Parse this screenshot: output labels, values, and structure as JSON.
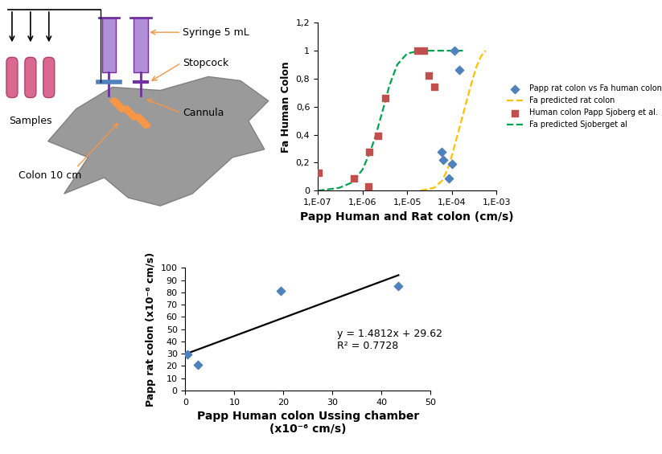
{
  "diagram": {
    "labels": {
      "samples": "Samples",
      "syringe": "Syringe 5 mL",
      "stopcock": "Stopcock",
      "cannula": "Cannula",
      "colon": "Colon 10 cm"
    }
  },
  "chart_data": [
    {
      "type": "scatter",
      "xlabel": "Papp Human and Rat colon (cm/s)",
      "ylabel": "Fa Human Colon",
      "log": "x",
      "grid": false,
      "legend": "center left",
      "xlim": [
        1e-07,
        0.001
      ],
      "xticks": [
        {
          "value": 1e-07,
          "label": "1,E-07"
        },
        {
          "value": 1e-06,
          "label": "1,E-06"
        },
        {
          "value": 1e-05,
          "label": "1,E-05"
        },
        {
          "value": 0.0001,
          "label": "1,E-04"
        },
        {
          "value": 0.001,
          "label": "1,E-03"
        }
      ],
      "ylim": [
        0,
        1.2
      ],
      "yticks": [
        0,
        {
          "value": 0.2,
          "label": "0,2"
        },
        {
          "value": 0.4,
          "label": "0,4"
        },
        {
          "value": 0.6,
          "label": "0,6"
        },
        {
          "value": 0.8,
          "label": "0,8"
        },
        1,
        {
          "value": 1.2,
          "label": "1,2"
        }
      ],
      "series": [
        {
          "name": "Papp rat colon vs Fa human colon",
          "type": "scatter",
          "marker": "diamond",
          "color": "#4f81bd",
          "x": [
            5.9e-05,
            6.4e-05,
            8.5e-05,
            0.0001,
            0.000114,
            0.000148
          ],
          "values": [
            0.28,
            0.22,
            0.09,
            0.19,
            1.0,
            0.86
          ]
        },
        {
          "name": "Fa predicted rat colon",
          "type": "line",
          "line_style": "dashed",
          "color": "#ffc000",
          "x": [
            2e-05,
            4e-05,
            6e-05,
            8e-05,
            0.0001,
            0.00014,
            0.00018,
            0.00025,
            0.00035,
            0.00045,
            0.00057
          ],
          "values": [
            0.0,
            0.02,
            0.07,
            0.15,
            0.25,
            0.42,
            0.55,
            0.72,
            0.88,
            0.96,
            1.0
          ]
        },
        {
          "name": "Human colon Papp Sjoberg et al.",
          "type": "scatter",
          "marker": "square",
          "color": "#c0504d",
          "x": [
            1.06e-07,
            6.4e-07,
            1.36e-06,
            1.4e-06,
            2.2e-06,
            3.3e-06,
            1.7e-05,
            2.4e-05,
            3.1e-05,
            4e-05
          ],
          "values": [
            0.13,
            0.09,
            0.03,
            0.28,
            0.39,
            0.66,
            1.0,
            1.0,
            0.82,
            0.74
          ]
        },
        {
          "name": "Fa predicted Sjoberget al",
          "type": "line",
          "line_style": "dashed",
          "color": "#00a550",
          "x": [
            1e-07,
            3e-07,
            6e-07,
            1e-06,
            1.5e-06,
            2e-06,
            3e-06,
            4e-06,
            6e-06,
            1e-05,
            2e-05,
            0.0001,
            0.0002
          ],
          "values": [
            0.0,
            0.02,
            0.06,
            0.15,
            0.28,
            0.4,
            0.6,
            0.75,
            0.9,
            0.98,
            1.0,
            1.0,
            1.0
          ]
        }
      ]
    },
    {
      "type": "scatter",
      "xlabel": "Papp Human colon Ussing chamber\n(x10⁻⁶ cm/s)",
      "ylabel": "Papp rat colon (x10⁻⁶ cm/s)",
      "grid": false,
      "xlim": [
        0,
        50
      ],
      "xticks": [
        0,
        10,
        20,
        30,
        40,
        50
      ],
      "ylim": [
        0,
        100
      ],
      "yticks": [
        0,
        10,
        20,
        30,
        40,
        50,
        60,
        70,
        80,
        90,
        100
      ],
      "annotations": [
        "y = 1.4812x + 29.62",
        "R² = 0.7728"
      ],
      "series": [
        {
          "type": "scatter",
          "marker": "diamond",
          "color": "#4f81bd",
          "x": [
            0.5,
            2.5,
            19.5,
            43.5
          ],
          "values": [
            29.5,
            21,
            81,
            85
          ]
        },
        {
          "type": "line",
          "line_style": "solid",
          "color": "#000000",
          "x": [
            0,
            43.5
          ],
          "values": [
            29.62,
            94.05
          ]
        }
      ]
    }
  ]
}
